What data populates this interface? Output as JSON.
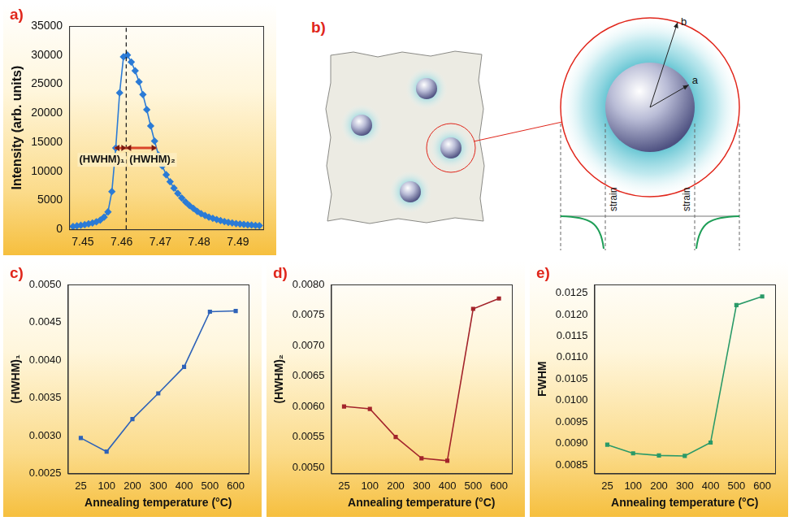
{
  "chart_data": [
    {
      "panel": "a)",
      "type": "line",
      "y_label": "Intensity (arb. units)",
      "x": [
        7.4475,
        7.4485,
        7.4495,
        7.4505,
        7.4515,
        7.4525,
        7.4535,
        7.4545,
        7.4555,
        7.4565,
        7.4575,
        7.4585,
        7.4595,
        7.4605,
        7.4615,
        7.4625,
        7.4635,
        7.4645,
        7.4655,
        7.4665,
        7.4675,
        7.4685,
        7.4695,
        7.4705,
        7.4715,
        7.4725,
        7.4735,
        7.4745,
        7.4755,
        7.4765,
        7.4775,
        7.4785,
        7.4795,
        7.4805,
        7.4815,
        7.4825,
        7.4835,
        7.4845,
        7.4855,
        7.4865,
        7.4875,
        7.4885,
        7.4895,
        7.4905,
        7.4915,
        7.4925,
        7.4935,
        7.4945,
        7.4955
      ],
      "values": [
        500,
        600,
        700,
        800,
        950,
        1100,
        1300,
        1600,
        2100,
        3000,
        6500,
        14000,
        23500,
        29700,
        30000,
        28800,
        27300,
        25400,
        23200,
        20600,
        17800,
        15200,
        12800,
        10900,
        9400,
        8200,
        7100,
        6200,
        5400,
        4700,
        4100,
        3600,
        3100,
        2700,
        2400,
        2100,
        1900,
        1700,
        1500,
        1350,
        1200,
        1100,
        1000,
        920,
        850,
        790,
        740,
        690,
        650
      ],
      "color": "#2b7bd6",
      "marker": "diamond",
      "xlim": [
        7.4465,
        7.4965
      ],
      "xticks": [
        7.45,
        7.46,
        7.47,
        7.48,
        7.49
      ],
      "ylim": [
        0,
        35000
      ],
      "yticks": [
        0,
        5000,
        10000,
        15000,
        20000,
        25000,
        30000,
        35000
      ],
      "grid": false,
      "peak_x": 7.4612,
      "annotations": [
        {
          "text": "(HWHM)₁",
          "x": [
            7.4582,
            7.4612
          ],
          "y": 14000
        },
        {
          "text": "(HWHM)₂",
          "x": [
            7.4612,
            7.469
          ],
          "y": 14000
        }
      ]
    },
    {
      "panel": "c)",
      "type": "line",
      "x_label": "Annealing temperature (°C)",
      "y_label": "(HWHM)₁",
      "categories": [
        "25",
        "100",
        "200",
        "300",
        "400",
        "500",
        "600"
      ],
      "values": [
        0.00297,
        0.00279,
        0.00322,
        0.00356,
        0.00391,
        0.00464,
        0.00465
      ],
      "color": "#2f63b8",
      "marker": "square",
      "ylim": [
        0.0025,
        0.005
      ],
      "yticks": [
        0.0025,
        {
          "value": 0.003,
          "label": "0.0030"
        },
        0.0035,
        {
          "value": 0.004,
          "label": "0.0040"
        },
        0.0045,
        {
          "value": 0.005,
          "label": "0.0050"
        }
      ],
      "grid": false
    },
    {
      "panel": "d)",
      "type": "line",
      "x_label": "Annealing temperature (°C)",
      "y_label": "(HWHM)₂",
      "categories": [
        "25",
        "100",
        "200",
        "300",
        "400",
        "500",
        "600"
      ],
      "values": [
        0.006,
        0.00596,
        0.0055,
        0.00515,
        0.00511,
        0.0076,
        0.00777
      ],
      "color": "#a3242b",
      "marker": "square",
      "ylim": [
        0.0049,
        0.008
      ],
      "yticks": [
        {
          "value": 0.005,
          "label": "0.0050"
        },
        0.0055,
        {
          "value": 0.006,
          "label": "0.0060"
        },
        0.0065,
        {
          "value": 0.007,
          "label": "0.0070"
        },
        0.0075,
        {
          "value": 0.008,
          "label": "0.0080"
        }
      ],
      "grid": false
    },
    {
      "panel": "e)",
      "type": "line",
      "x_label": "Annealing temperature (°C)",
      "y_label": "FWHM",
      "categories": [
        "25",
        "100",
        "200",
        "300",
        "400",
        "500",
        "600"
      ],
      "values": [
        0.00897,
        0.00877,
        0.00872,
        0.00871,
        0.00902,
        0.01222,
        0.01242
      ],
      "color": "#2a9a68",
      "marker": "square",
      "ylim": [
        0.0083,
        0.0127
      ],
      "yticks": [
        0.0085,
        {
          "value": 0.009,
          "label": "0.0090"
        },
        0.0095,
        {
          "value": 0.01,
          "label": "0.0100"
        },
        0.0105,
        {
          "value": 0.011,
          "label": "0.0110"
        },
        0.0115,
        {
          "value": 0.012,
          "label": "0.0120"
        },
        0.0125
      ],
      "grid": false
    }
  ],
  "diagram": {
    "panel": "b)",
    "radius_labels": [
      "a",
      "b"
    ],
    "strain_labels": [
      "strain",
      "strain"
    ]
  }
}
